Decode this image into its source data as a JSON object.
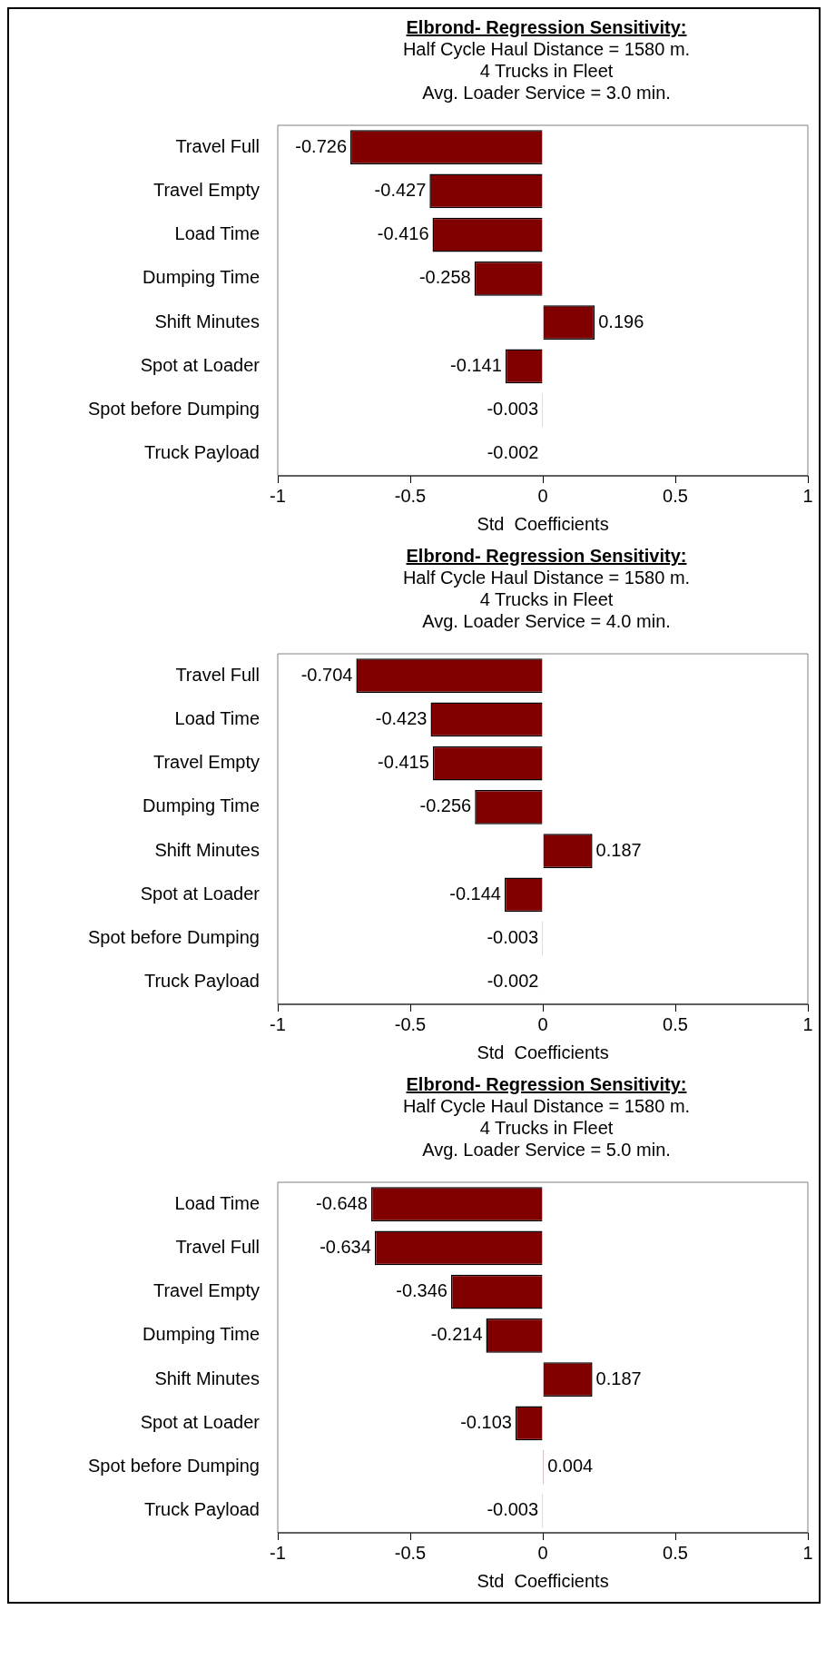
{
  "chart_data": [
    {
      "type": "bar",
      "orientation": "horizontal",
      "title": "Elbrond- Regression Sensitivity:",
      "subtitle": "Half Cycle Haul Distance = 1580 m.\n4 Trucks in Fleet\nAvg. Loader Service = 3.0 min.",
      "xlabel": "Std  Coefficients",
      "categories": [
        "Travel Full",
        "Travel Empty",
        "Load Time",
        "Dumping Time",
        "Shift Minutes",
        "Spot at Loader",
        "Spot before Dumping",
        "Truck Payload"
      ],
      "values": [
        -0.726,
        -0.427,
        -0.416,
        -0.258,
        0.196,
        -0.141,
        -0.003,
        -0.002
      ],
      "color": "#800000",
      "xlim": [
        -1,
        1
      ],
      "xticks": [
        -1,
        -0.5,
        0,
        0.5,
        1
      ],
      "grid": false,
      "legend": false,
      "data_labels": true
    },
    {
      "type": "bar",
      "orientation": "horizontal",
      "title": "Elbrond- Regression Sensitivity:",
      "subtitle": "Half Cycle Haul Distance = 1580 m.\n4 Trucks in Fleet\nAvg. Loader Service = 4.0 min.",
      "xlabel": "Std  Coefficients",
      "categories": [
        "Travel Full",
        "Load Time",
        "Travel Empty",
        "Dumping Time",
        "Shift Minutes",
        "Spot at Loader",
        "Spot before Dumping",
        "Truck Payload"
      ],
      "values": [
        -0.704,
        -0.423,
        -0.415,
        -0.256,
        0.187,
        -0.144,
        -0.003,
        -0.002
      ],
      "color": "#800000",
      "xlim": [
        -1,
        1
      ],
      "xticks": [
        -1,
        -0.5,
        0,
        0.5,
        1
      ],
      "grid": false,
      "legend": false,
      "data_labels": true
    },
    {
      "type": "bar",
      "orientation": "horizontal",
      "title": "Elbrond- Regression Sensitivity:",
      "subtitle": "Half Cycle Haul Distance = 1580 m.\n4 Trucks in Fleet\nAvg. Loader Service = 5.0 min.",
      "xlabel": "Std  Coefficients",
      "categories": [
        "Load Time",
        "Travel Full",
        "Travel Empty",
        "Dumping Time",
        "Shift Minutes",
        "Spot at Loader",
        "Spot before Dumping",
        "Truck Payload"
      ],
      "values": [
        -0.648,
        -0.634,
        -0.346,
        -0.214,
        0.187,
        -0.103,
        0.004,
        -0.003
      ],
      "color": "#800000",
      "xlim": [
        -1,
        1
      ],
      "xticks": [
        -1,
        -0.5,
        0,
        0.5,
        1
      ],
      "grid": false,
      "legend": false,
      "data_labels": true
    }
  ]
}
